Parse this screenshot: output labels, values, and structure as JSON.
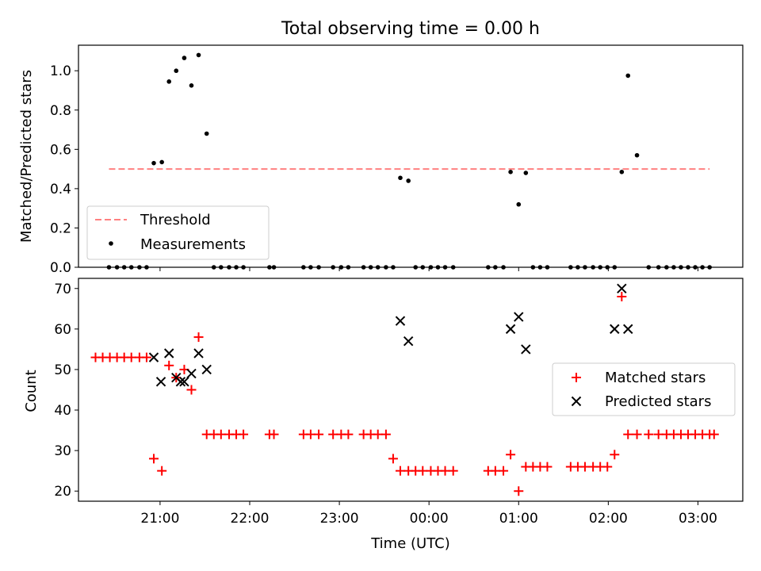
{
  "chart_data": [
    {
      "type": "scatter",
      "title": "Total observing time = 0.00 h",
      "xlabel": "",
      "ylabel": "Matched/Predicted stars",
      "ylim": [
        0,
        1.13
      ],
      "yticks": [
        "0.0",
        "0.2",
        "0.4",
        "0.6",
        "0.8",
        "1.0"
      ],
      "threshold": {
        "name": "Threshold",
        "y": 0.5,
        "x_range": [
          20.43,
          27.13
        ],
        "color": "#ff8080"
      },
      "legend": {
        "placement": "lower-left"
      },
      "series": [
        {
          "name": "Measurements",
          "color": "#000000",
          "marker": "dot",
          "x": [
            20.43,
            20.52,
            20.6,
            20.68,
            20.77,
            20.85,
            20.93,
            21.02,
            21.1,
            21.18,
            21.27,
            21.35,
            21.43,
            21.52,
            21.6,
            21.68,
            21.77,
            21.85,
            21.93,
            22.22,
            22.27,
            22.6,
            22.68,
            22.77,
            22.93,
            23.02,
            23.1,
            23.27,
            23.35,
            23.43,
            23.52,
            23.6,
            23.68,
            23.77,
            23.85,
            23.93,
            24.02,
            24.1,
            24.18,
            24.27,
            24.66,
            24.74,
            24.83,
            24.91,
            25.0,
            25.08,
            25.16,
            25.24,
            25.32,
            25.58,
            25.66,
            25.74,
            25.83,
            25.91,
            25.99,
            26.07,
            26.15,
            26.22,
            26.32,
            26.45,
            26.56,
            26.65,
            26.73,
            26.81,
            26.89,
            26.97,
            27.05,
            27.13
          ],
          "y": [
            0,
            0,
            0,
            0,
            0,
            0,
            0.53,
            0.535,
            0.945,
            1.0,
            1.065,
            0.925,
            1.08,
            0.68,
            0,
            0,
            0,
            0,
            0,
            0,
            0,
            0,
            0,
            0,
            0,
            0,
            0,
            0,
            0,
            0,
            0,
            0,
            0.455,
            0.44,
            0,
            0,
            0,
            0,
            0,
            0,
            0,
            0,
            0,
            0.485,
            0.32,
            0.48,
            0,
            0,
            0,
            0,
            0,
            0,
            0,
            0,
            0,
            0,
            0.485,
            0.975,
            0.57,
            0,
            0,
            0,
            0,
            0,
            0,
            0,
            0,
            0
          ]
        }
      ]
    },
    {
      "type": "scatter",
      "xlabel": "Time (UTC)",
      "ylabel": "Count",
      "ylim": [
        17.5,
        72.5
      ],
      "yticks": [
        "20",
        "30",
        "40",
        "50",
        "60",
        "70"
      ],
      "xticks": [
        {
          "value": 21,
          "label": "21:00"
        },
        {
          "value": 22,
          "label": "22:00"
        },
        {
          "value": 23,
          "label": "23:00"
        },
        {
          "value": 24,
          "label": "00:00"
        },
        {
          "value": 25,
          "label": "01:00"
        },
        {
          "value": 26,
          "label": "02:00"
        },
        {
          "value": 27,
          "label": "03:00"
        }
      ],
      "xlim": [
        20.09,
        27.5
      ],
      "legend": {
        "placement": "center-right"
      },
      "series": [
        {
          "name": "Matched stars",
          "color": "#ff0000",
          "marker": "plus",
          "x": [
            20.28,
            20.36,
            20.44,
            20.52,
            20.6,
            20.68,
            20.77,
            20.85,
            20.93,
            21.02,
            21.1,
            21.18,
            21.27,
            21.35,
            21.43,
            21.52,
            21.6,
            21.68,
            21.77,
            21.85,
            21.93,
            22.22,
            22.27,
            22.6,
            22.68,
            22.77,
            22.93,
            23.02,
            23.1,
            23.27,
            23.35,
            23.43,
            23.52,
            23.6,
            23.68,
            23.77,
            23.85,
            23.93,
            24.02,
            24.1,
            24.18,
            24.27,
            24.66,
            24.74,
            24.83,
            24.91,
            25.0,
            25.08,
            25.16,
            25.24,
            25.32,
            25.58,
            25.66,
            25.74,
            25.83,
            25.91,
            25.99,
            26.07,
            26.15,
            26.22,
            26.32,
            26.45,
            26.56,
            26.65,
            26.73,
            26.81,
            26.89,
            26.97,
            27.05,
            27.13,
            27.18
          ],
          "y": [
            53,
            53,
            53,
            53,
            53,
            53,
            53,
            53,
            28,
            25,
            51,
            48,
            50,
            45,
            58,
            34,
            34,
            34,
            34,
            34,
            34,
            34,
            34,
            34,
            34,
            34,
            34,
            34,
            34,
            34,
            34,
            34,
            34,
            28,
            25,
            25,
            25,
            25,
            25,
            25,
            25,
            25,
            25,
            25,
            25,
            29,
            20,
            26,
            26,
            26,
            26,
            26,
            26,
            26,
            26,
            26,
            26,
            29,
            68,
            34,
            34,
            34,
            34,
            34,
            34,
            34,
            34,
            34,
            34,
            34,
            34
          ]
        },
        {
          "name": "Predicted stars",
          "color": "#000000",
          "marker": "x",
          "x": [
            20.93,
            21.01,
            21.1,
            21.18,
            21.23,
            21.27,
            21.35,
            21.43,
            21.52,
            23.68,
            23.77,
            24.91,
            25.0,
            25.08,
            26.07,
            26.15,
            26.22
          ],
          "y": [
            53,
            47,
            54,
            48,
            47,
            47,
            49,
            54,
            50,
            62,
            57,
            60,
            63,
            55,
            60,
            70,
            60
          ]
        }
      ]
    }
  ]
}
